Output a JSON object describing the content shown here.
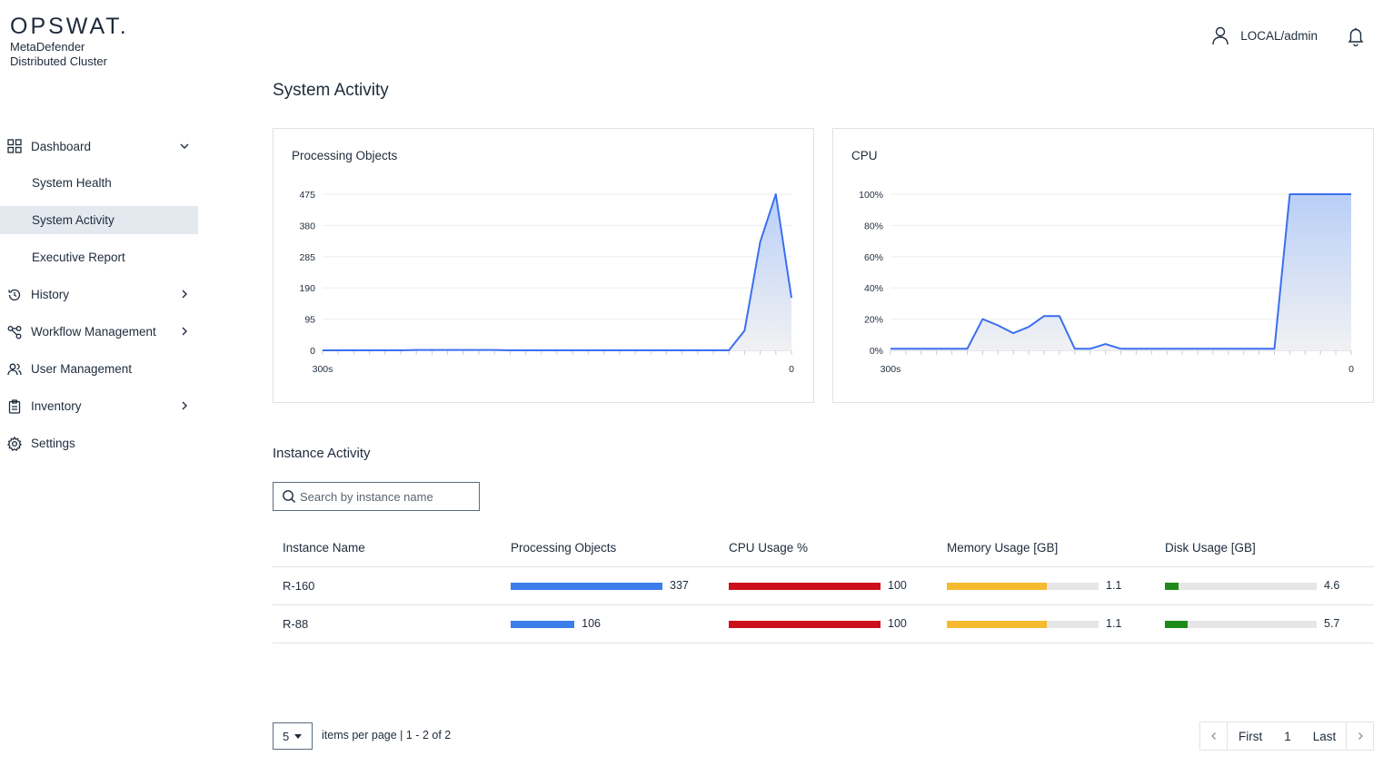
{
  "brand": {
    "logo": "OPSWAT.",
    "product": "MetaDefender",
    "subtitle": "Distributed Cluster"
  },
  "sidebar": {
    "items": [
      {
        "label": "Dashboard",
        "icon": "grid-icon",
        "expanded": true,
        "children": [
          {
            "label": "System Health"
          },
          {
            "label": "System Activity",
            "active": true
          },
          {
            "label": "Executive Report"
          }
        ]
      },
      {
        "label": "History",
        "icon": "history-icon"
      },
      {
        "label": "Workflow Management",
        "icon": "workflow-icon"
      },
      {
        "label": "User Management",
        "icon": "users-icon"
      },
      {
        "label": "Inventory",
        "icon": "clipboard-icon"
      },
      {
        "label": "Settings",
        "icon": "gear-icon"
      }
    ]
  },
  "header": {
    "user": "LOCAL/admin"
  },
  "page_title": "System Activity",
  "colors": {
    "line": "#3b6ff0",
    "area_top": "#b9cff7",
    "area_bottom": "#f1f1f3",
    "blue_bar": "#3b7de9",
    "red_bar": "#cc0f1b",
    "yellow_bar": "#f5ba2e",
    "green_bar": "#1d8a1a",
    "track": "#e6e6e6"
  },
  "chart_data": [
    {
      "type": "area",
      "title": "Processing Objects",
      "x_labels": [
        "300s",
        "0"
      ],
      "y_ticks": [
        "475",
        "380",
        "285",
        "190",
        "95",
        "0"
      ],
      "ylim": [
        0,
        475
      ],
      "xlim": [
        300,
        0
      ],
      "x": [
        300,
        290,
        280,
        270,
        260,
        250,
        240,
        230,
        220,
        210,
        200,
        190,
        180,
        170,
        160,
        150,
        140,
        130,
        120,
        110,
        100,
        90,
        80,
        70,
        60,
        50,
        40,
        30,
        20,
        10,
        0
      ],
      "values": [
        0,
        0,
        0,
        0,
        0,
        0,
        1,
        1,
        1,
        1,
        1,
        1,
        0,
        0,
        0,
        0,
        0,
        0,
        0,
        0,
        0,
        0,
        0,
        0,
        0,
        0,
        0,
        60,
        330,
        475,
        160
      ]
    },
    {
      "type": "area",
      "title": "CPU",
      "x_labels": [
        "300s",
        "0"
      ],
      "y_ticks": [
        "100%",
        "80%",
        "60%",
        "40%",
        "20%",
        "0%"
      ],
      "ylim": [
        0,
        100
      ],
      "xlim": [
        300,
        0
      ],
      "x": [
        300,
        290,
        280,
        270,
        260,
        250,
        240,
        230,
        220,
        210,
        200,
        190,
        180,
        170,
        160,
        150,
        140,
        130,
        120,
        110,
        100,
        90,
        80,
        70,
        60,
        50,
        40,
        30,
        20,
        10,
        0
      ],
      "values": [
        1,
        1,
        1,
        1,
        1,
        1,
        20,
        16,
        11,
        15,
        22,
        22,
        1,
        1,
        4,
        1,
        1,
        1,
        1,
        1,
        1,
        1,
        1,
        1,
        1,
        1,
        100,
        100,
        100,
        100,
        100
      ]
    }
  ],
  "instances": {
    "title": "Instance Activity",
    "search_placeholder": "Search by instance name",
    "columns": [
      "Instance Name",
      "Processing Objects",
      "CPU Usage %",
      "Memory Usage [GB]",
      "Disk Usage [GB]"
    ],
    "rows": [
      {
        "name": "R-160",
        "processing": {
          "value": "337",
          "fraction": 1.0
        },
        "cpu": {
          "value": "100",
          "fraction": 1.0
        },
        "memory": {
          "value": "1.1",
          "fraction": 0.66
        },
        "disk": {
          "value": "4.6",
          "fraction": 0.09
        }
      },
      {
        "name": "R-88",
        "processing": {
          "value": "106",
          "fraction": 0.42
        },
        "cpu": {
          "value": "100",
          "fraction": 1.0
        },
        "memory": {
          "value": "1.1",
          "fraction": 0.66
        },
        "disk": {
          "value": "5.7",
          "fraction": 0.15
        }
      }
    ]
  },
  "pagination": {
    "per_page": "5",
    "info": "items per page | 1 - 2 of 2",
    "first": "First",
    "current": "1",
    "last": "Last"
  }
}
